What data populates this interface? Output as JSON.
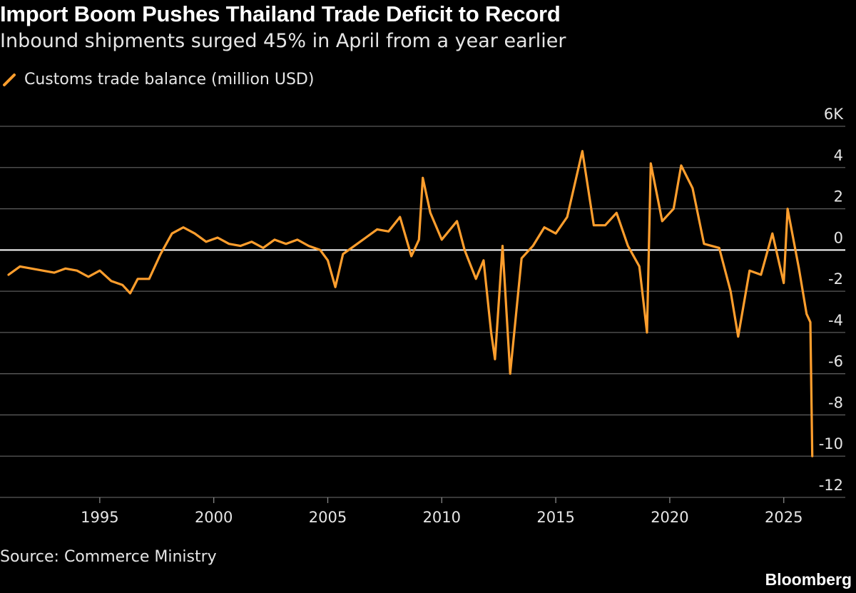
{
  "header": {
    "title": "Import Boom Pushes Thailand Trade Deficit to Record",
    "subtitle": "Inbound shipments surged 45% in April from a year earlier"
  },
  "legend": {
    "label": "Customs trade balance (million USD)"
  },
  "footer": {
    "source": "Source: Commerce Ministry",
    "brand": "Bloomberg"
  },
  "colors": {
    "background": "#000000",
    "line": "#ff9e2d",
    "grid": "#5a5a5a",
    "zero_line": "#ffffff",
    "text": "#e6e6e6"
  },
  "chart_data": {
    "type": "line",
    "title": "Import Boom Pushes Thailand Trade Deficit to Record",
    "subtitle": "Inbound shipments surged 45% in April from a year earlier",
    "ylim": [
      -12,
      6
    ],
    "xlim": [
      "1991-01",
      "2026-12"
    ],
    "y_ticks": [
      6,
      4,
      2,
      0,
      -2,
      -4,
      -6,
      -8,
      -10,
      -12
    ],
    "y_tick_labels": [
      "6K",
      "4",
      "2",
      "0",
      "-2",
      "-4",
      "-6",
      "-8",
      "-10",
      "-12"
    ],
    "x_ticks": [
      "1995",
      "2000",
      "2005",
      "2010",
      "2015",
      "2020",
      "2025"
    ],
    "y_axis_side": "right",
    "grid": true,
    "series": [
      {
        "name": "Customs trade balance (million USD)",
        "unit": "thousand million USD",
        "points": [
          [
            "1991-01",
            -1.2
          ],
          [
            "1991-07",
            -0.8
          ],
          [
            "1992-01",
            -0.9
          ],
          [
            "1992-07",
            -1.0
          ],
          [
            "1993-01",
            -1.1
          ],
          [
            "1993-07",
            -0.9
          ],
          [
            "1994-01",
            -1.0
          ],
          [
            "1994-07",
            -1.3
          ],
          [
            "1995-01",
            -1.0
          ],
          [
            "1995-07",
            -1.5
          ],
          [
            "1996-01",
            -1.7
          ],
          [
            "1996-05",
            -2.1
          ],
          [
            "1996-09",
            -1.4
          ],
          [
            "1997-03",
            -1.4
          ],
          [
            "1997-09",
            -0.2
          ],
          [
            "1998-03",
            0.8
          ],
          [
            "1998-09",
            1.1
          ],
          [
            "1999-03",
            0.8
          ],
          [
            "1999-09",
            0.4
          ],
          [
            "2000-03",
            0.6
          ],
          [
            "2000-09",
            0.3
          ],
          [
            "2001-03",
            0.2
          ],
          [
            "2001-09",
            0.4
          ],
          [
            "2002-03",
            0.1
          ],
          [
            "2002-09",
            0.5
          ],
          [
            "2003-03",
            0.3
          ],
          [
            "2003-09",
            0.5
          ],
          [
            "2004-03",
            0.2
          ],
          [
            "2004-09",
            0.0
          ],
          [
            "2005-01",
            -0.5
          ],
          [
            "2005-05",
            -1.8
          ],
          [
            "2005-09",
            -0.2
          ],
          [
            "2006-03",
            0.2
          ],
          [
            "2006-09",
            0.6
          ],
          [
            "2007-03",
            1.0
          ],
          [
            "2007-09",
            0.9
          ],
          [
            "2008-03",
            1.6
          ],
          [
            "2008-09",
            -0.3
          ],
          [
            "2009-01",
            0.5
          ],
          [
            "2009-03",
            3.5
          ],
          [
            "2009-07",
            1.8
          ],
          [
            "2010-01",
            0.5
          ],
          [
            "2010-09",
            1.4
          ],
          [
            "2011-01",
            0.0
          ],
          [
            "2011-07",
            -1.4
          ],
          [
            "2011-11",
            -0.5
          ],
          [
            "2012-03",
            -4.0
          ],
          [
            "2012-05",
            -5.3
          ],
          [
            "2012-09",
            0.2
          ],
          [
            "2013-01",
            -6.0
          ],
          [
            "2013-07",
            -0.4
          ],
          [
            "2014-01",
            0.2
          ],
          [
            "2014-07",
            1.1
          ],
          [
            "2015-01",
            0.8
          ],
          [
            "2015-07",
            1.6
          ],
          [
            "2016-03",
            4.8
          ],
          [
            "2016-09",
            1.2
          ],
          [
            "2017-03",
            1.2
          ],
          [
            "2017-09",
            1.8
          ],
          [
            "2018-03",
            0.2
          ],
          [
            "2018-09",
            -0.8
          ],
          [
            "2019-01",
            -4.0
          ],
          [
            "2019-03",
            4.2
          ],
          [
            "2019-09",
            1.4
          ],
          [
            "2020-03",
            2.0
          ],
          [
            "2020-07",
            4.1
          ],
          [
            "2021-01",
            3.0
          ],
          [
            "2021-07",
            0.3
          ],
          [
            "2022-03",
            0.1
          ],
          [
            "2022-09",
            -2.0
          ],
          [
            "2023-01",
            -4.2
          ],
          [
            "2023-07",
            -1.0
          ],
          [
            "2024-01",
            -1.2
          ],
          [
            "2024-07",
            0.8
          ],
          [
            "2025-01",
            -1.6
          ],
          [
            "2025-03",
            2.0
          ],
          [
            "2025-09",
            -0.9
          ],
          [
            "2026-01",
            -3.1
          ],
          [
            "2026-03",
            -3.5
          ],
          [
            "2026-04",
            -10.0
          ]
        ]
      }
    ]
  }
}
